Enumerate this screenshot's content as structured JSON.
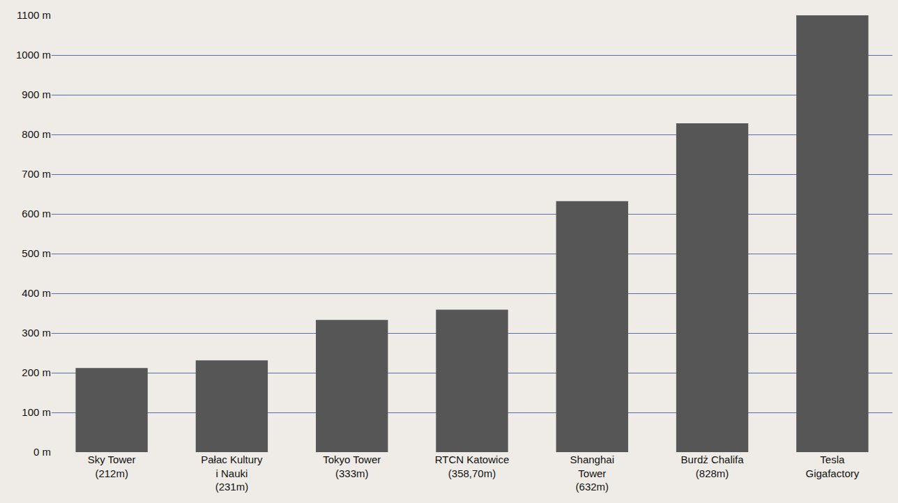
{
  "chart_data": {
    "type": "bar",
    "categories": [
      "Sky Tower (212m)",
      "Pałac Kultury i Nauki (231m)",
      "Tokyo Tower (333m)",
      "RTCN Katowice (358,70m)",
      "Shanghai Tower (632m)",
      "Burdż Chalifa (828m)",
      "Tesla Gigafactory"
    ],
    "values": [
      212,
      231,
      333,
      358.7,
      632,
      828,
      1100
    ],
    "color": "#565656",
    "ylim": [
      0,
      1100
    ],
    "yticks": [
      {
        "value": 0,
        "label": "0 m"
      },
      {
        "value": 100,
        "label": "100 m"
      },
      {
        "value": 200,
        "label": "200 m"
      },
      {
        "value": 300,
        "label": "300 m"
      },
      {
        "value": 400,
        "label": "400 m"
      },
      {
        "value": 500,
        "label": "500 m"
      },
      {
        "value": 600,
        "label": "600 m"
      },
      {
        "value": 700,
        "label": "700 m"
      },
      {
        "value": 800,
        "label": "800 m"
      },
      {
        "value": 900,
        "label": "900 m"
      },
      {
        "value": 1000,
        "label": "1000 m"
      },
      {
        "value": 1100,
        "label": "1100 m"
      }
    ],
    "grid": true
  }
}
